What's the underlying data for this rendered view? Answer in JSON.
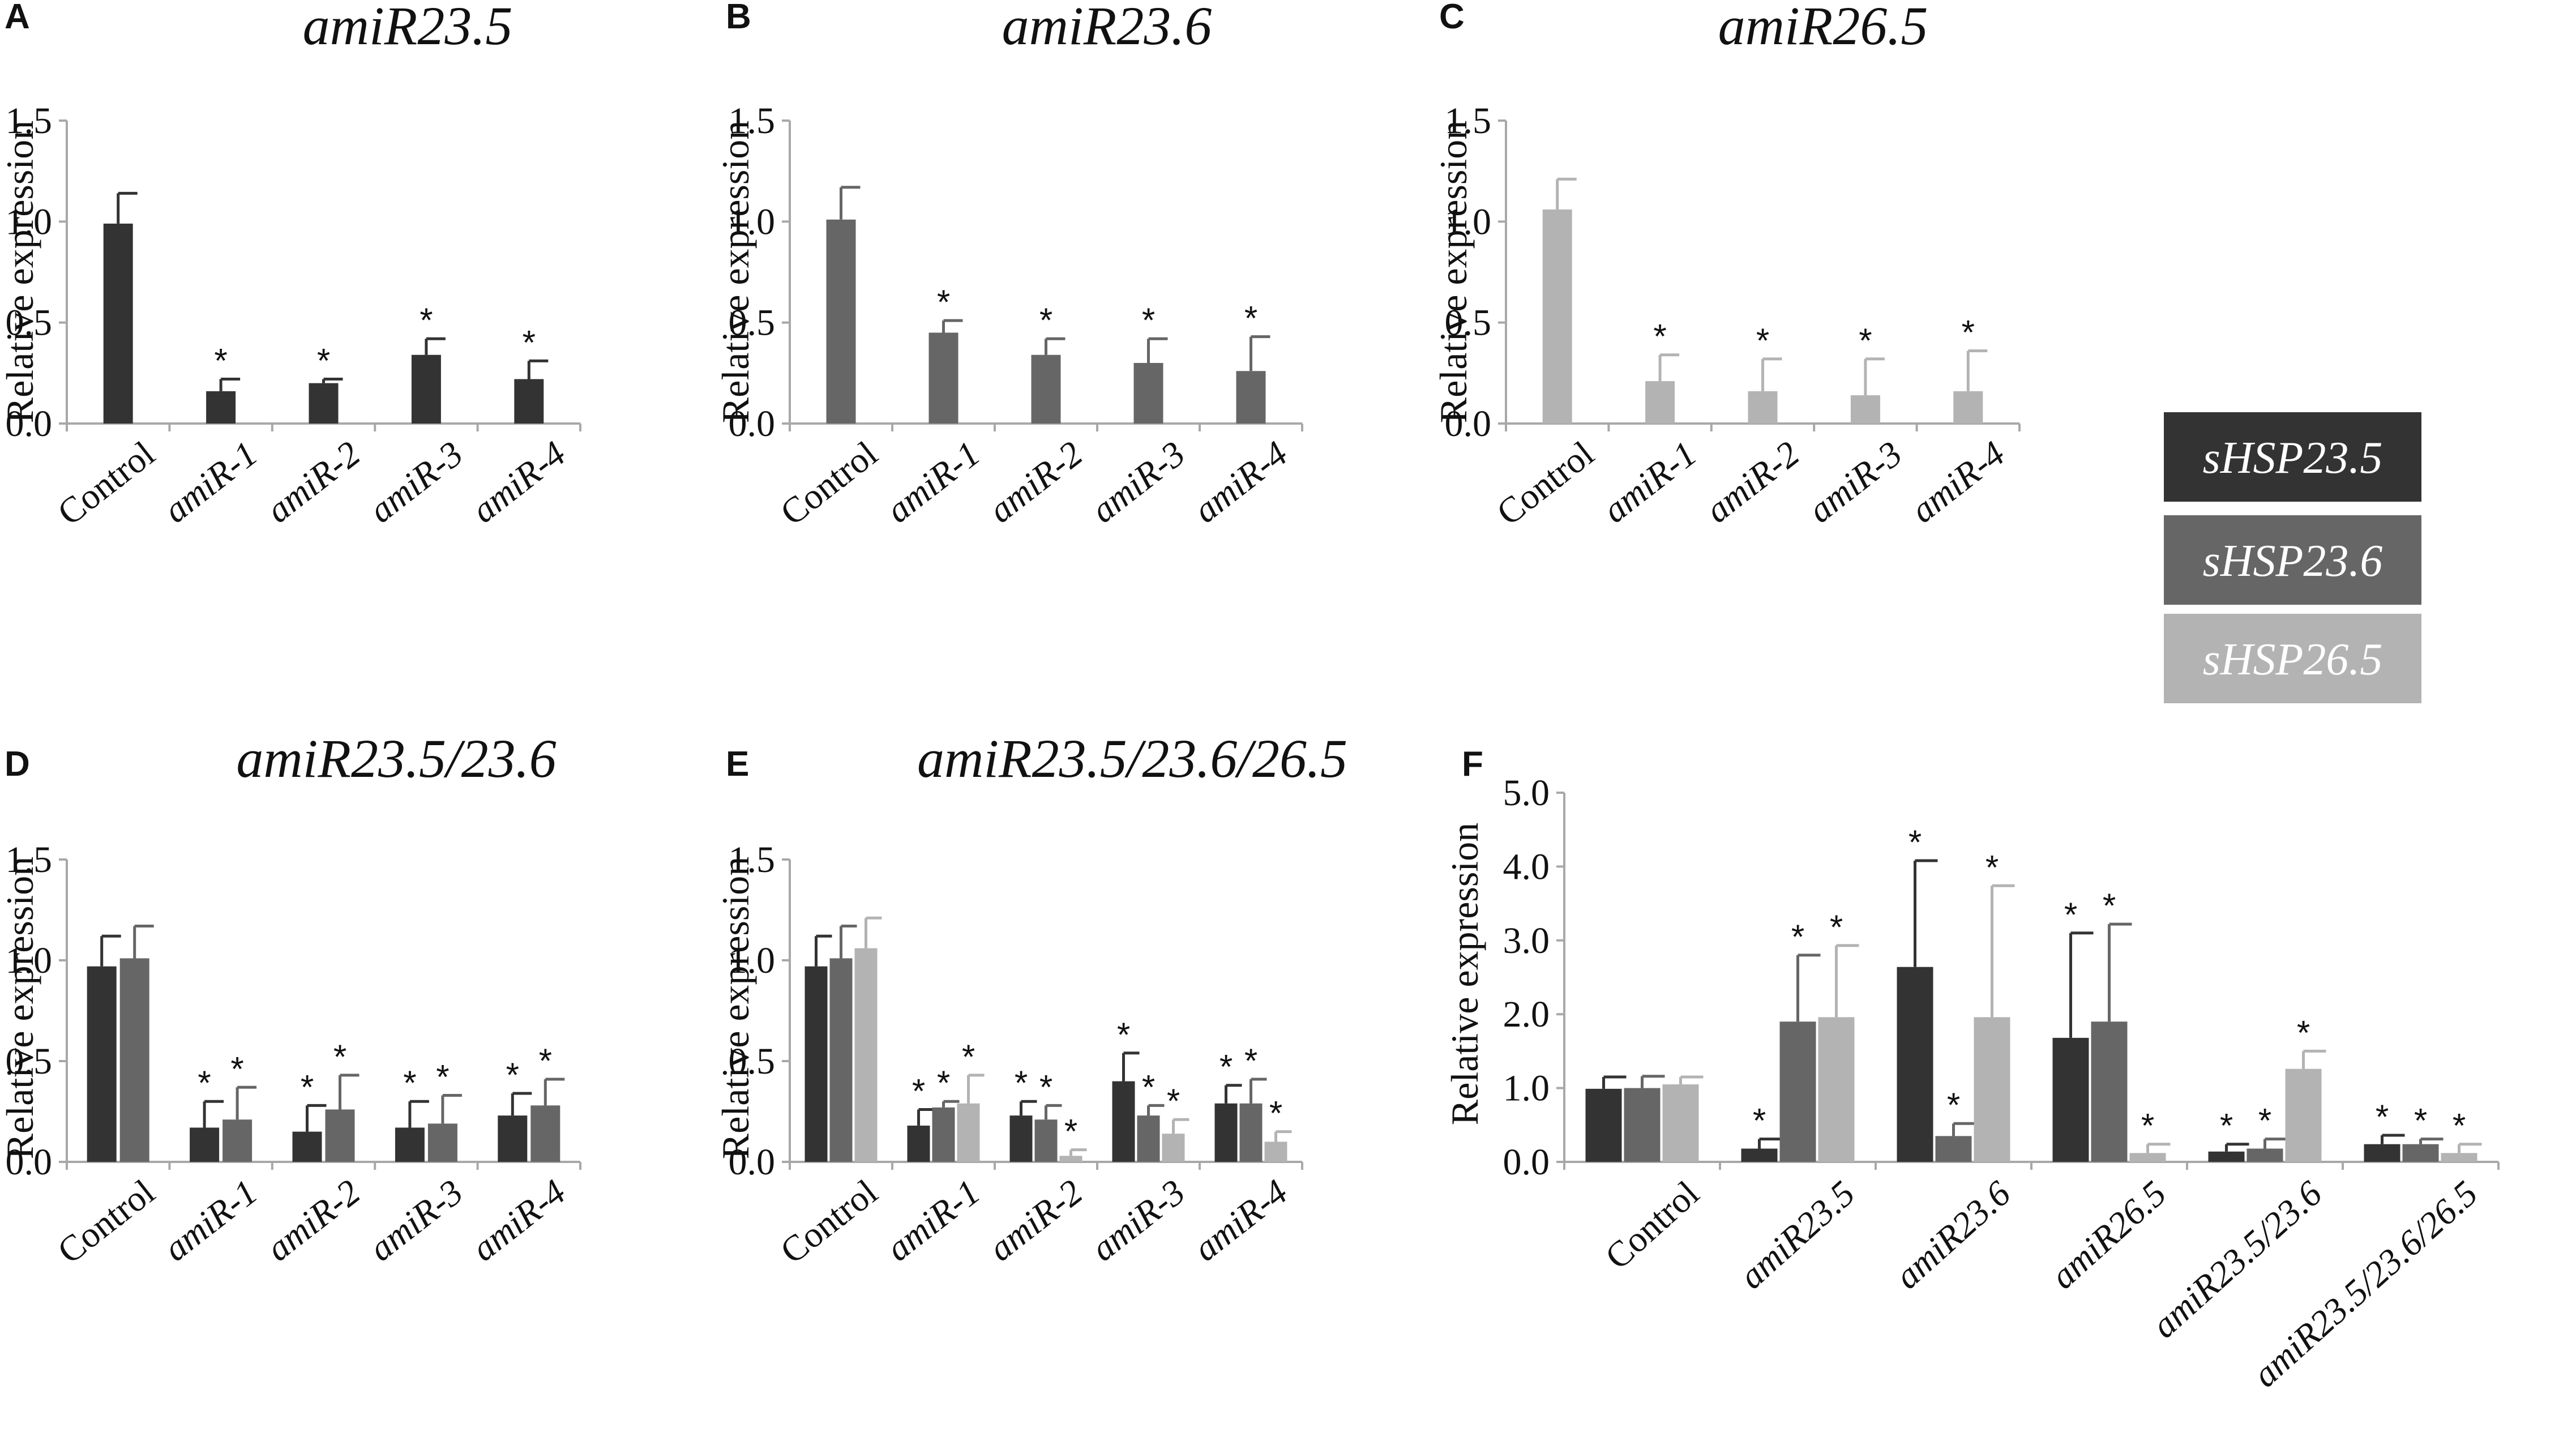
{
  "colors": {
    "sHSP23.5": "#333333",
    "sHSP23.6": "#666666",
    "sHSP26.5": "#b3b3b3"
  },
  "legend": {
    "items": [
      {
        "label": "sHSP23.5",
        "color_key": "sHSP23.5"
      },
      {
        "label": "sHSP23.6",
        "color_key": "sHSP23.6"
      },
      {
        "label": "sHSP26.5",
        "color_key": "sHSP26.5"
      }
    ]
  },
  "chart_data": [
    {
      "type": "bar",
      "panel": "A",
      "title": "amiR23.5",
      "ylabel": "Relative expression",
      "ylim": [
        0,
        1.5
      ],
      "yticks": [
        "0.0",
        "0.5",
        "1.0",
        "1.5"
      ],
      "categories": [
        "Control",
        "amiR-1",
        "amiR-2",
        "amiR-3",
        "amiR-4"
      ],
      "italic_categories": [
        false,
        true,
        true,
        true,
        true
      ],
      "series": [
        {
          "name": "sHSP23.5",
          "values": [
            0.99,
            0.16,
            0.2,
            0.34,
            0.22
          ],
          "errors": [
            0.15,
            0.06,
            0.02,
            0.08,
            0.09
          ],
          "significant": [
            false,
            true,
            true,
            true,
            true
          ]
        }
      ]
    },
    {
      "type": "bar",
      "panel": "B",
      "title": "amiR23.6",
      "ylabel": "Relative expression",
      "ylim": [
        0,
        1.5
      ],
      "yticks": [
        "0.0",
        "0.5",
        "1.0",
        "1.5"
      ],
      "categories": [
        "Control",
        "amiR-1",
        "amiR-2",
        "amiR-3",
        "amiR-4"
      ],
      "italic_categories": [
        false,
        true,
        true,
        true,
        true
      ],
      "series": [
        {
          "name": "sHSP23.6",
          "values": [
            1.01,
            0.45,
            0.34,
            0.3,
            0.26
          ],
          "errors": [
            0.16,
            0.06,
            0.08,
            0.12,
            0.17
          ],
          "significant": [
            false,
            true,
            true,
            true,
            true
          ]
        }
      ]
    },
    {
      "type": "bar",
      "panel": "C",
      "title": "amiR26.5",
      "ylabel": "Relative expression",
      "ylim": [
        0,
        1.5
      ],
      "yticks": [
        "0.0",
        "0.5",
        "1.0",
        "1.5"
      ],
      "categories": [
        "Control",
        "amiR-1",
        "amiR-2",
        "amiR-3",
        "amiR-4"
      ],
      "italic_categories": [
        false,
        true,
        true,
        true,
        true
      ],
      "series": [
        {
          "name": "sHSP26.5",
          "values": [
            1.06,
            0.21,
            0.16,
            0.14,
            0.16
          ],
          "errors": [
            0.15,
            0.13,
            0.16,
            0.18,
            0.2
          ],
          "significant": [
            false,
            true,
            true,
            true,
            true
          ]
        }
      ]
    },
    {
      "type": "bar",
      "panel": "D",
      "title": "amiR23.5/23.6",
      "ylabel": "Relative expression",
      "ylim": [
        0,
        1.5
      ],
      "yticks": [
        "0.0",
        "0.5",
        "1.0",
        "1.5"
      ],
      "categories": [
        "Control",
        "amiR-1",
        "amiR-2",
        "amiR-3",
        "amiR-4"
      ],
      "italic_categories": [
        false,
        true,
        true,
        true,
        true
      ],
      "series": [
        {
          "name": "sHSP23.5",
          "values": [
            0.97,
            0.17,
            0.15,
            0.17,
            0.23
          ],
          "errors": [
            0.15,
            0.13,
            0.13,
            0.13,
            0.11
          ],
          "significant": [
            false,
            true,
            true,
            true,
            true
          ]
        },
        {
          "name": "sHSP23.6",
          "values": [
            1.01,
            0.21,
            0.26,
            0.19,
            0.28
          ],
          "errors": [
            0.16,
            0.16,
            0.17,
            0.14,
            0.13
          ],
          "significant": [
            false,
            true,
            true,
            true,
            true
          ]
        }
      ]
    },
    {
      "type": "bar",
      "panel": "E",
      "title": "amiR23.5/23.6/26.5",
      "ylabel": "Relative expression",
      "ylim": [
        0,
        1.5
      ],
      "yticks": [
        "0.0",
        "0.5",
        "1.0",
        "1.5"
      ],
      "categories": [
        "Control",
        "amiR-1",
        "amiR-2",
        "amiR-3",
        "amiR-4"
      ],
      "italic_categories": [
        false,
        true,
        true,
        true,
        true
      ],
      "series": [
        {
          "name": "sHSP23.5",
          "values": [
            0.97,
            0.18,
            0.23,
            0.4,
            0.29
          ],
          "errors": [
            0.15,
            0.08,
            0.07,
            0.14,
            0.09
          ],
          "significant": [
            false,
            true,
            true,
            true,
            true
          ]
        },
        {
          "name": "sHSP23.6",
          "values": [
            1.01,
            0.27,
            0.21,
            0.23,
            0.29
          ],
          "errors": [
            0.16,
            0.03,
            0.07,
            0.05,
            0.12
          ],
          "significant": [
            false,
            true,
            true,
            true,
            true
          ]
        },
        {
          "name": "sHSP26.5",
          "values": [
            1.06,
            0.29,
            0.03,
            0.14,
            0.1
          ],
          "errors": [
            0.15,
            0.14,
            0.03,
            0.07,
            0.05
          ],
          "significant": [
            false,
            true,
            true,
            true,
            true
          ]
        }
      ]
    },
    {
      "type": "bar",
      "panel": "F",
      "title": "",
      "ylabel": "Relative expression",
      "ylim": [
        0,
        5
      ],
      "yticks": [
        "0.0",
        "1.0",
        "2.0",
        "3.0",
        "4.0",
        "5.0"
      ],
      "categories": [
        "Control",
        "amiR23.5",
        "amiR23.6",
        "amiR26.5",
        "amiR23.5/23.6",
        "amiR23.5/23.6/26.5"
      ],
      "italic_categories": [
        false,
        true,
        true,
        true,
        true,
        true
      ],
      "series": [
        {
          "name": "sHSP23.5",
          "values": [
            0.99,
            0.18,
            2.64,
            1.68,
            0.14,
            0.24
          ],
          "errors": [
            0.16,
            0.13,
            1.44,
            1.42,
            0.1,
            0.12
          ],
          "significant": [
            false,
            true,
            true,
            true,
            true,
            true
          ]
        },
        {
          "name": "sHSP23.6",
          "values": [
            1.0,
            1.9,
            0.35,
            1.9,
            0.18,
            0.24
          ],
          "errors": [
            0.16,
            0.9,
            0.17,
            1.32,
            0.13,
            0.07
          ],
          "significant": [
            false,
            true,
            true,
            true,
            true,
            true
          ]
        },
        {
          "name": "sHSP26.5",
          "values": [
            1.05,
            1.96,
            1.96,
            0.12,
            1.26,
            0.12
          ],
          "errors": [
            0.1,
            0.97,
            1.78,
            0.12,
            0.24,
            0.12
          ],
          "significant": [
            false,
            true,
            true,
            true,
            true,
            true
          ]
        }
      ]
    }
  ]
}
